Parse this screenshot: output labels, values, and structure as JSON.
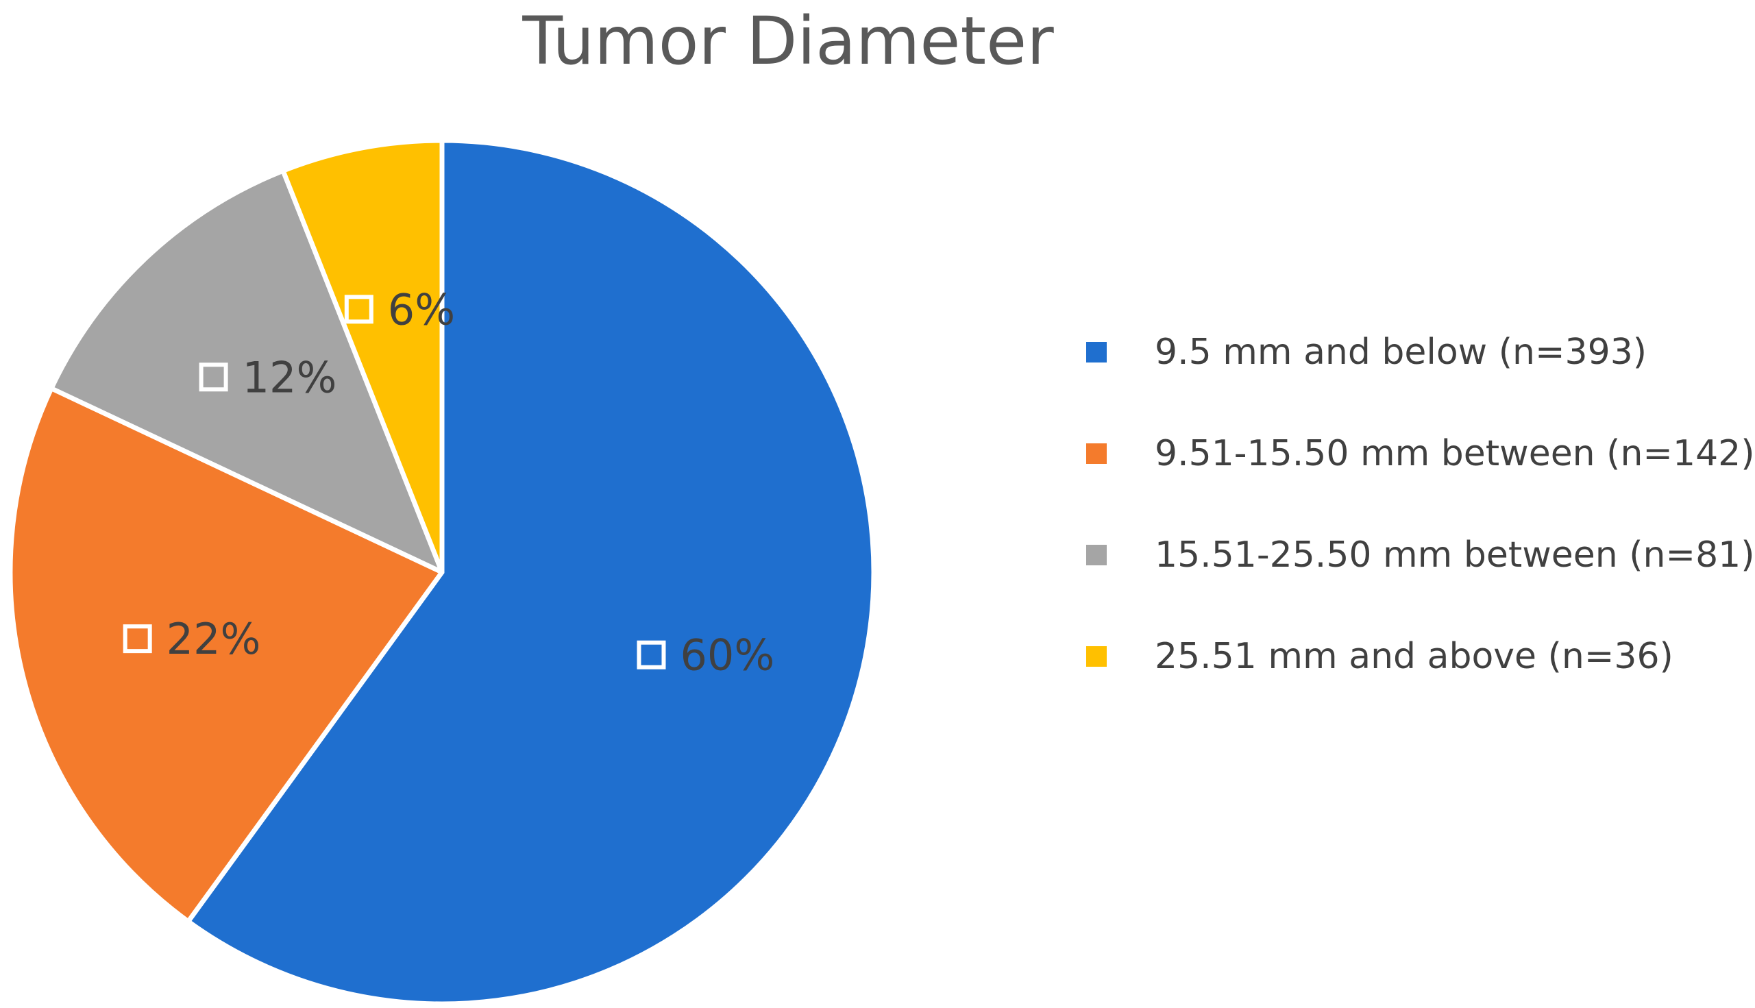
{
  "chart_data": {
    "type": "pie",
    "title": "Tumor Diameter",
    "slices": [
      {
        "label": "9.5 mm and below (n=393)",
        "value": 60,
        "data_label": "60%",
        "color": "#1F6FCF"
      },
      {
        "label": "9.51-15.50 mm between (n=142)",
        "value": 22,
        "data_label": "22%",
        "color": "#F47B2C"
      },
      {
        "label": "15.51-25.50 mm between (n=81)",
        "value": 12,
        "data_label": "12%",
        "color": "#A5A5A5"
      },
      {
        "label": "25.51 mm and above (n=36)",
        "value": 6,
        "data_label": "6%",
        "color": "#FFC000"
      }
    ],
    "start_angle_deg": 0,
    "direction": "clockwise",
    "legend_position": "right"
  }
}
